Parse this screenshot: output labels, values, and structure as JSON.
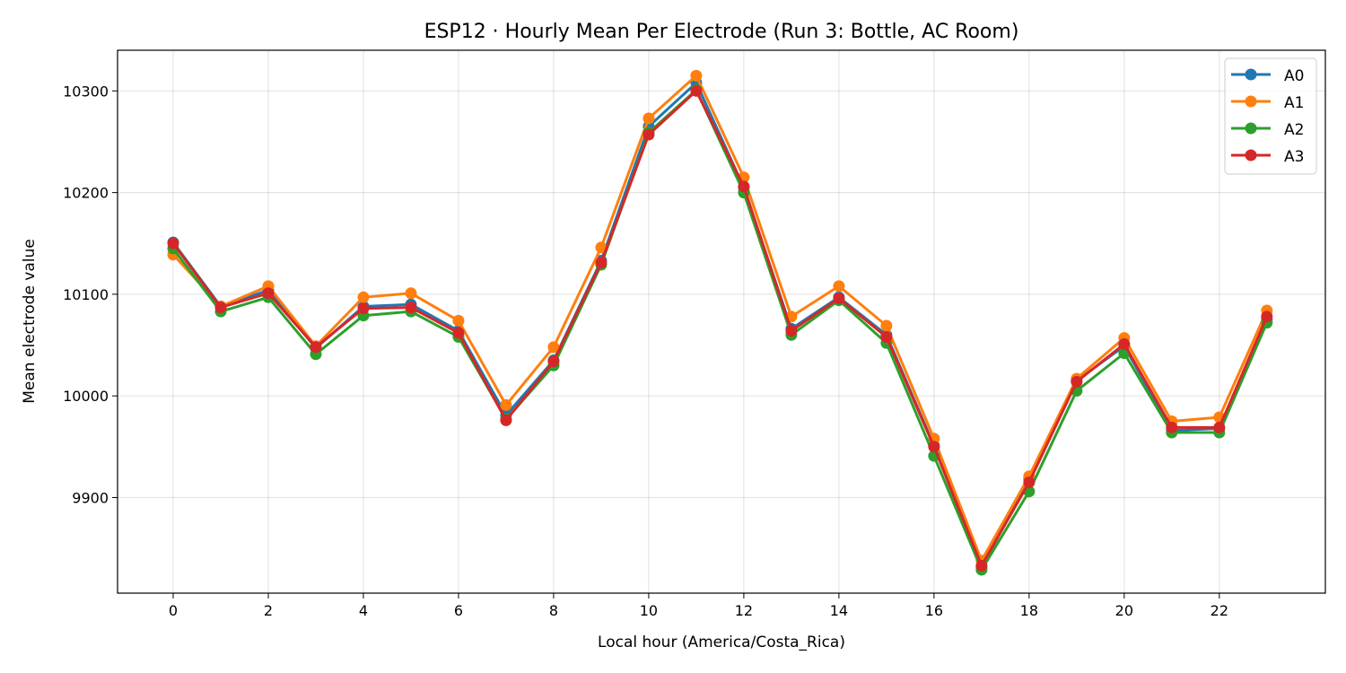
{
  "chart_data": {
    "type": "line",
    "title": "ESP12 · Hourly Mean Per Electrode (Run 3: Bottle, AC Room)",
    "xlabel": "Local hour (America/Costa_Rica)",
    "ylabel": "Mean electrode value",
    "x": [
      0,
      1,
      2,
      3,
      4,
      5,
      6,
      7,
      8,
      9,
      10,
      11,
      12,
      13,
      14,
      15,
      16,
      17,
      18,
      19,
      20,
      21,
      22,
      23
    ],
    "xticks": [
      0,
      2,
      4,
      6,
      8,
      10,
      12,
      14,
      16,
      18,
      20,
      22
    ],
    "yticks": [
      9900,
      10000,
      10100,
      10200,
      10300
    ],
    "xlim": [
      -1.17,
      24.23
    ],
    "ylim": [
      9806,
      10340
    ],
    "grid": true,
    "legend_position": "top-right",
    "series": [
      {
        "name": "A0",
        "color": "#1f77b4",
        "values": [
          10151,
          10088,
          10104,
          10047,
          10088,
          10090,
          10064,
          9981,
          10035,
          10133,
          10265,
          10308,
          10205,
          10066,
          10097,
          10060,
          9951,
          9831,
          9919,
          10015,
          10049,
          9966,
          9968,
          10075
        ]
      },
      {
        "name": "A1",
        "color": "#ff7f0e",
        "values": [
          10139,
          10088,
          10108,
          10049,
          10097,
          10101,
          10074,
          9991,
          10048,
          10146,
          10273,
          10315,
          10215,
          10078,
          10108,
          10069,
          9958,
          9838,
          9921,
          10017,
          10057,
          9975,
          9979,
          10084
        ]
      },
      {
        "name": "A2",
        "color": "#2ca02c",
        "values": [
          10145,
          10083,
          10097,
          10041,
          10079,
          10083,
          10058,
          9977,
          10030,
          10129,
          10259,
          10301,
          10200,
          10060,
          10094,
          10052,
          9941,
          9829,
          9906,
          10005,
          10042,
          9964,
          9964,
          10072
        ]
      },
      {
        "name": "A3",
        "color": "#d62728",
        "values": [
          10150,
          10087,
          10101,
          10048,
          10086,
          10087,
          10062,
          9976,
          10034,
          10131,
          10257,
          10300,
          10206,
          10064,
          10096,
          10058,
          9950,
          9833,
          9915,
          10014,
          10051,
          9969,
          9969,
          10078
        ]
      }
    ]
  }
}
